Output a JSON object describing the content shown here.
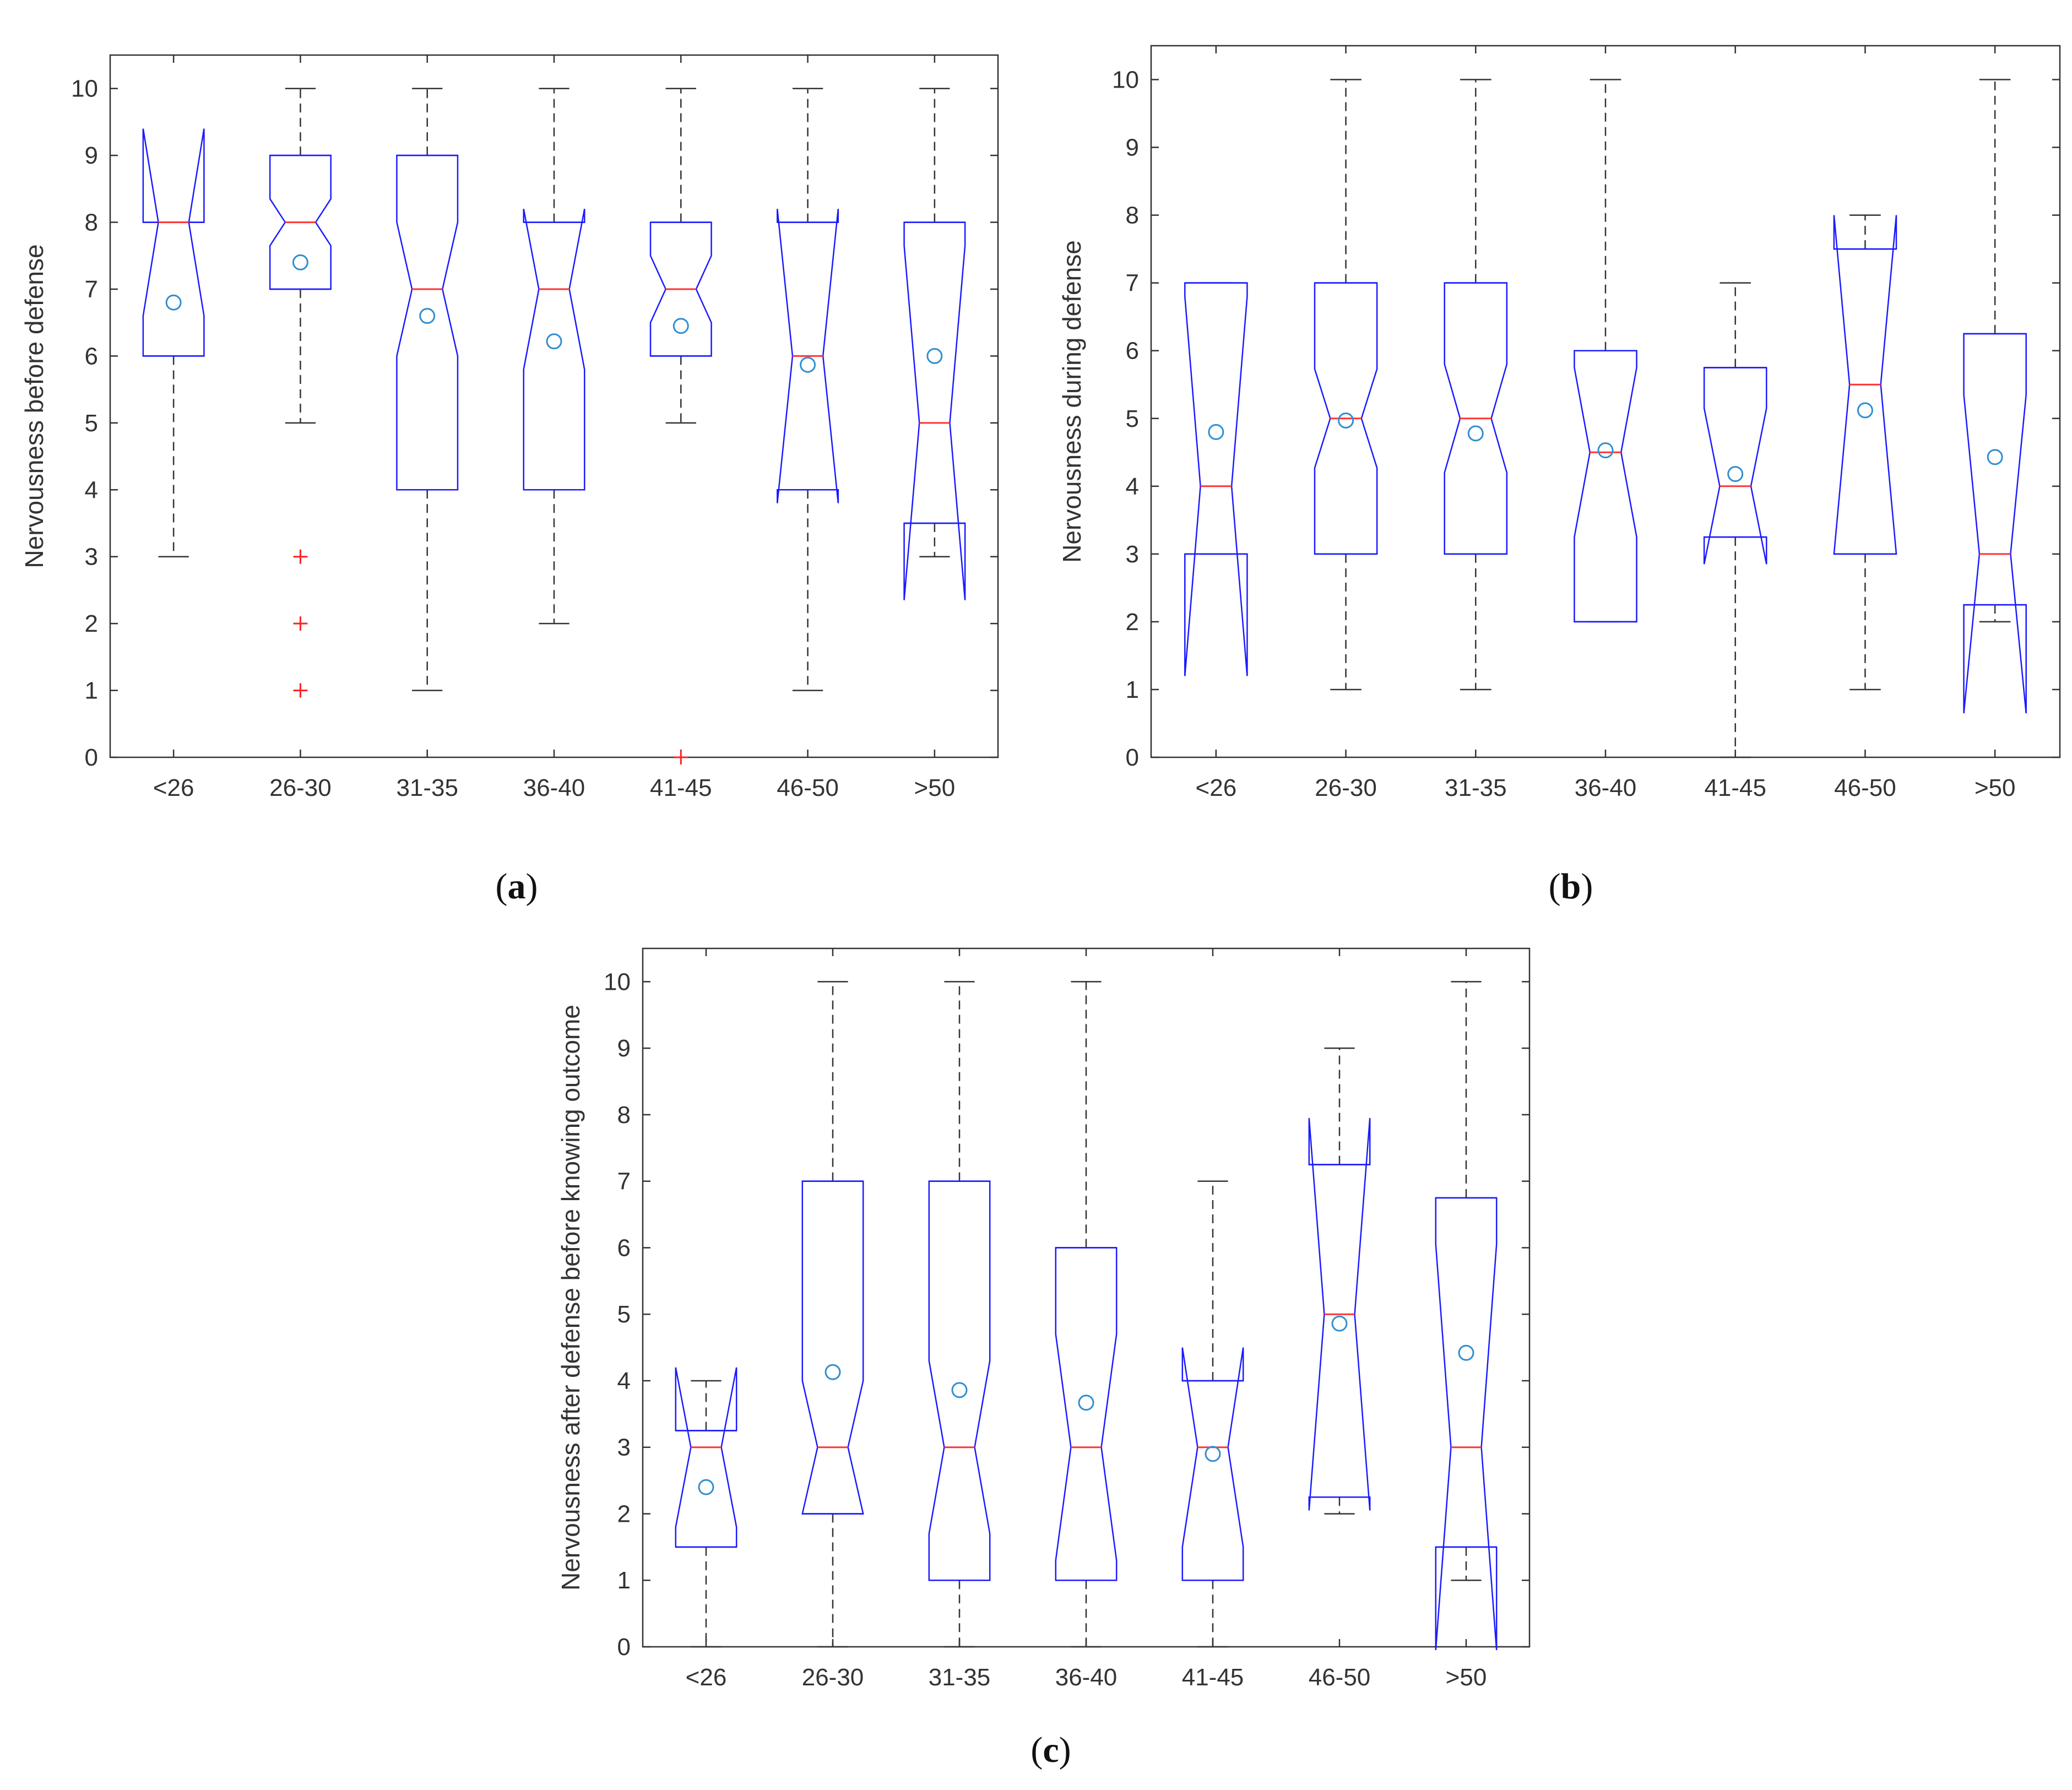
{
  "chart_data": [
    {
      "type": "boxplot",
      "panel": "a",
      "ylabel": "Nervousness before defense",
      "xlabel": "",
      "ylim": [
        0,
        10.5
      ],
      "yticks": [
        "0",
        "1",
        "2",
        "3",
        "4",
        "5",
        "6",
        "7",
        "8",
        "9",
        "10"
      ],
      "categories": [
        "<26",
        "26-30",
        "31-35",
        "36-40",
        "41-45",
        "46-50",
        ">50"
      ],
      "boxes": [
        {
          "q1": 6,
          "median": 8,
          "q3": 8,
          "notch_low": 6.6,
          "notch_high": 9.4,
          "whisker_low": 3,
          "whisker_high": 8,
          "mean": 6.8,
          "outliers": []
        },
        {
          "q1": 7,
          "median": 8,
          "q3": 9,
          "notch_low": 7.65,
          "notch_high": 8.35,
          "whisker_low": 5,
          "whisker_high": 10,
          "mean": 7.4,
          "outliers": [
            3,
            2,
            1
          ]
        },
        {
          "q1": 4,
          "median": 7,
          "q3": 9,
          "notch_low": 6,
          "notch_high": 8,
          "whisker_low": 1,
          "whisker_high": 10,
          "mean": 6.6,
          "outliers": []
        },
        {
          "q1": 4,
          "median": 7,
          "q3": 8,
          "notch_low": 5.8,
          "notch_high": 8.2,
          "whisker_low": 2,
          "whisker_high": 10,
          "mean": 6.22,
          "outliers": []
        },
        {
          "q1": 6,
          "median": 7,
          "q3": 8,
          "notch_low": 6.5,
          "notch_high": 7.5,
          "whisker_low": 5,
          "whisker_high": 10,
          "mean": 6.45,
          "outliers": [
            0
          ]
        },
        {
          "q1": 4,
          "median": 6,
          "q3": 8,
          "notch_low": 3.8,
          "notch_high": 8.2,
          "whisker_low": 1,
          "whisker_high": 10,
          "mean": 5.87,
          "outliers": []
        },
        {
          "q1": 3.5,
          "median": 5,
          "q3": 8,
          "notch_low": 2.35,
          "notch_high": 7.65,
          "whisker_low": 3,
          "whisker_high": 10,
          "mean": 6.0,
          "outliers": []
        }
      ],
      "caption_label": "a"
    },
    {
      "type": "boxplot",
      "panel": "b",
      "ylabel": "Nervousness during defense",
      "xlabel": "",
      "ylim": [
        0,
        10.5
      ],
      "yticks": [
        "0",
        "1",
        "2",
        "3",
        "4",
        "5",
        "6",
        "7",
        "8",
        "9",
        "10"
      ],
      "categories": [
        "<26",
        "26-30",
        "31-35",
        "36-40",
        "41-45",
        "46-50",
        ">50"
      ],
      "boxes": [
        {
          "q1": 3,
          "median": 4,
          "q3": 7,
          "notch_low": 1.2,
          "notch_high": 6.8,
          "whisker_low": 3,
          "whisker_high": 7,
          "mean": 4.8,
          "outliers": []
        },
        {
          "q1": 3,
          "median": 5,
          "q3": 7,
          "notch_low": 4.27,
          "notch_high": 5.73,
          "whisker_low": 1,
          "whisker_high": 10,
          "mean": 4.97,
          "outliers": []
        },
        {
          "q1": 3,
          "median": 5,
          "q3": 7,
          "notch_low": 4.2,
          "notch_high": 5.8,
          "whisker_low": 1,
          "whisker_high": 10,
          "mean": 4.78,
          "outliers": []
        },
        {
          "q1": 2,
          "median": 4.5,
          "q3": 6,
          "notch_low": 3.25,
          "notch_high": 5.75,
          "whisker_low": 2,
          "whisker_high": 10,
          "mean": 4.53,
          "outliers": []
        },
        {
          "q1": 3.25,
          "median": 4,
          "q3": 5.75,
          "notch_low": 2.85,
          "notch_high": 5.15,
          "whisker_low": 0,
          "whisker_high": 7,
          "mean": 4.18,
          "outliers": []
        },
        {
          "q1": 3,
          "median": 5.5,
          "q3": 7.5,
          "notch_low": 3.0,
          "notch_high": 8.0,
          "whisker_low": 1,
          "whisker_high": 8,
          "mean": 5.12,
          "outliers": []
        },
        {
          "q1": 2.25,
          "median": 3,
          "q3": 6.25,
          "notch_low": 0.65,
          "notch_high": 5.35,
          "whisker_low": 2,
          "whisker_high": 10,
          "mean": 4.43,
          "outliers": []
        }
      ],
      "caption_label": "b"
    },
    {
      "type": "boxplot",
      "panel": "c",
      "ylabel": "Nervousness after defense before knowing outcome",
      "xlabel": "",
      "ylim": [
        0,
        10.5
      ],
      "yticks": [
        "0",
        "1",
        "2",
        "3",
        "4",
        "5",
        "6",
        "7",
        "8",
        "9",
        "10"
      ],
      "categories": [
        "<26",
        "26-30",
        "31-35",
        "36-40",
        "41-45",
        "46-50",
        ">50"
      ],
      "boxes": [
        {
          "q1": 1.5,
          "median": 3,
          "q3": 3.25,
          "notch_low": 1.8,
          "notch_high": 4.2,
          "whisker_low": 0,
          "whisker_high": 4,
          "mean": 2.4,
          "outliers": []
        },
        {
          "q1": 2,
          "median": 3,
          "q3": 7,
          "notch_low": 2.0,
          "notch_high": 4.0,
          "whisker_low": 0,
          "whisker_high": 10,
          "mean": 4.13,
          "outliers": []
        },
        {
          "q1": 1,
          "median": 3,
          "q3": 7,
          "notch_low": 1.7,
          "notch_high": 4.3,
          "whisker_low": 0,
          "whisker_high": 10,
          "mean": 3.86,
          "outliers": []
        },
        {
          "q1": 1,
          "median": 3,
          "q3": 6,
          "notch_low": 1.3,
          "notch_high": 4.7,
          "whisker_low": 0,
          "whisker_high": 10,
          "mean": 3.67,
          "outliers": []
        },
        {
          "q1": 1,
          "median": 3,
          "q3": 4,
          "notch_low": 1.5,
          "notch_high": 4.5,
          "whisker_low": 0,
          "whisker_high": 7,
          "mean": 2.9,
          "outliers": []
        },
        {
          "q1": 2.25,
          "median": 5,
          "q3": 7.25,
          "notch_low": 2.05,
          "notch_high": 7.95,
          "whisker_low": 2,
          "whisker_high": 9,
          "mean": 4.86,
          "outliers": []
        },
        {
          "q1": 1.5,
          "median": 3,
          "q3": 6.75,
          "notch_low": -0.05,
          "notch_high": 6.05,
          "whisker_low": 1,
          "whisker_high": 10,
          "mean": 4.42,
          "outliers": []
        }
      ],
      "caption_label": "c"
    }
  ],
  "captions": [
    "a",
    "b",
    "c"
  ],
  "colors": {
    "box": "#1a1aff",
    "median": "#ff3333",
    "whisker": "#333333",
    "outlier": "#ff2020",
    "mean_marker": "#2f8fd0",
    "axis": "#333333",
    "text": "#333333"
  }
}
